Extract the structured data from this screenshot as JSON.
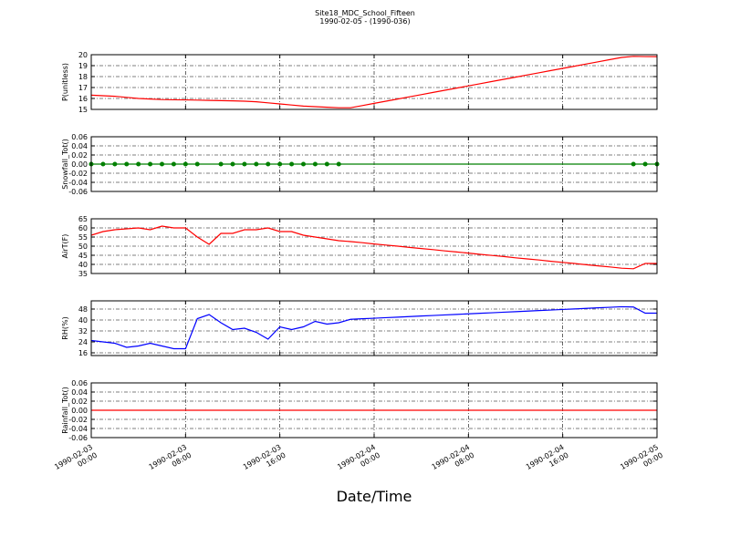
{
  "chart_data": [
    {
      "type": "line",
      "title": "Site18_MDC_School_Fifteen",
      "subtitle": "1990-02-05 - (1990-036)",
      "ylabel": "P(unitless)",
      "color": "#ff0000",
      "grid": true,
      "xlim": [
        "1990-02-03 00:00",
        "1990-02-05 00:00"
      ],
      "xticks": [
        "1990-02-03 00:00",
        "1990-02-03 08:00",
        "1990-02-03 16:00",
        "1990-02-04 00:00",
        "1990-02-04 08:00",
        "1990-02-04 16:00",
        "1990-02-05 00:00"
      ],
      "ylim": [
        15,
        20
      ],
      "yticks": [
        15,
        16,
        17,
        18,
        19,
        20
      ],
      "x": [
        "1990-02-03 00:00",
        "1990-02-03 01:00",
        "1990-02-03 02:00",
        "1990-02-03 03:00",
        "1990-02-03 04:00",
        "1990-02-03 05:00",
        "1990-02-03 06:00",
        "1990-02-03 07:00",
        "1990-02-03 08:00",
        "1990-02-03 09:00",
        "1990-02-03 10:00",
        "1990-02-03 11:00",
        "1990-02-03 12:00",
        "1990-02-03 13:00",
        "1990-02-03 14:00",
        "1990-02-03 15:00",
        "1990-02-03 16:00",
        "1990-02-03 17:00",
        "1990-02-03 18:00",
        "1990-02-03 19:00",
        "1990-02-03 20:00",
        "1990-02-03 21:00",
        "1990-02-03 22:00",
        "1990-02-03 23:00",
        "1990-02-04 00:00",
        "1990-02-04 01:00",
        "1990-02-04 02:00",
        "1990-02-04 03:00",
        "1990-02-04 04:00",
        "1990-02-04 05:00",
        "1990-02-04 06:00",
        "1990-02-04 07:00",
        "1990-02-04 08:00",
        "1990-02-04 09:00",
        "1990-02-04 10:00",
        "1990-02-04 11:00",
        "1990-02-04 12:00",
        "1990-02-04 13:00",
        "1990-02-04 14:00",
        "1990-02-04 15:00",
        "1990-02-04 16:00",
        "1990-02-04 17:00",
        "1990-02-04 18:00",
        "1990-02-04 19:00",
        "1990-02-04 20:00",
        "1990-02-04 21:00",
        "1990-02-04 22:00",
        "1990-02-04 23:00",
        "1990-02-05 00:00"
      ],
      "values": [
        16.3,
        16.25,
        16.2,
        16.1,
        16.0,
        15.95,
        15.9,
        15.88,
        15.87,
        15.85,
        15.82,
        15.8,
        15.78,
        15.75,
        15.7,
        15.6,
        15.5,
        15.4,
        15.3,
        15.25,
        15.2,
        15.15,
        15.15,
        15.35,
        15.55,
        15.75,
        15.95,
        16.15,
        16.35,
        16.55,
        16.75,
        16.95,
        17.15,
        17.35,
        17.55,
        17.75,
        17.95,
        18.15,
        18.35,
        18.55,
        18.75,
        18.95,
        19.15,
        19.35,
        19.55,
        19.75,
        19.85,
        19.83,
        19.82
      ]
    },
    {
      "type": "line",
      "ylabel": "Snowfall_Tot()",
      "color": "#008000",
      "markers": true,
      "grid": true,
      "xlim": [
        "1990-02-03 00:00",
        "1990-02-05 00:00"
      ],
      "xticks": [
        "1990-02-03 00:00",
        "1990-02-03 08:00",
        "1990-02-03 16:00",
        "1990-02-04 00:00",
        "1990-02-04 08:00",
        "1990-02-04 16:00",
        "1990-02-05 00:00"
      ],
      "ylim": [
        -0.06,
        0.06
      ],
      "yticks": [
        -0.06,
        -0.04,
        -0.02,
        {
          "value": 0,
          "label": "0.00"
        },
        0.02,
        0.04,
        0.06
      ],
      "x": [
        "1990-02-03 00:00",
        "1990-02-03 01:00",
        "1990-02-03 02:00",
        "1990-02-03 03:00",
        "1990-02-03 04:00",
        "1990-02-03 05:00",
        "1990-02-03 06:00",
        "1990-02-03 07:00",
        "1990-02-03 08:00",
        "1990-02-03 09:00",
        "1990-02-03 11:00",
        "1990-02-03 12:00",
        "1990-02-03 13:00",
        "1990-02-03 14:00",
        "1990-02-03 15:00",
        "1990-02-03 16:00",
        "1990-02-03 17:00",
        "1990-02-03 18:00",
        "1990-02-03 19:00",
        "1990-02-03 20:00",
        "1990-02-03 21:00",
        "1990-02-04 22:00",
        "1990-02-04 23:00",
        "1990-02-05 00:00"
      ],
      "values": [
        0,
        0,
        0,
        0,
        0,
        0,
        0,
        0,
        0,
        0,
        0,
        0,
        0,
        0,
        0,
        0,
        0,
        0,
        0,
        0,
        0,
        0,
        0,
        0
      ]
    },
    {
      "type": "line",
      "ylabel": "AirT(F)",
      "color": "#ff0000",
      "grid": true,
      "xlim": [
        "1990-02-03 00:00",
        "1990-02-05 00:00"
      ],
      "xticks": [
        "1990-02-03 00:00",
        "1990-02-03 08:00",
        "1990-02-03 16:00",
        "1990-02-04 00:00",
        "1990-02-04 08:00",
        "1990-02-04 16:00",
        "1990-02-05 00:00"
      ],
      "ylim": [
        35,
        65
      ],
      "yticks": [
        35,
        40,
        45,
        50,
        55,
        60,
        65
      ],
      "x": [
        "1990-02-03 00:00",
        "1990-02-03 01:00",
        "1990-02-03 02:00",
        "1990-02-03 03:00",
        "1990-02-03 04:00",
        "1990-02-03 05:00",
        "1990-02-03 06:00",
        "1990-02-03 07:00",
        "1990-02-03 08:00",
        "1990-02-03 09:00",
        "1990-02-03 10:00",
        "1990-02-03 11:00",
        "1990-02-03 12:00",
        "1990-02-03 13:00",
        "1990-02-03 14:00",
        "1990-02-03 15:00",
        "1990-02-03 16:00",
        "1990-02-03 17:00",
        "1990-02-03 18:00",
        "1990-02-03 19:00",
        "1990-02-03 20:00",
        "1990-02-03 21:00",
        "1990-02-03 22:00",
        "1990-02-03 23:00",
        "1990-02-04 00:00",
        "1990-02-04 01:00",
        "1990-02-04 02:00",
        "1990-02-04 03:00",
        "1990-02-04 04:00",
        "1990-02-04 05:00",
        "1990-02-04 06:00",
        "1990-02-04 07:00",
        "1990-02-04 08:00",
        "1990-02-04 09:00",
        "1990-02-04 10:00",
        "1990-02-04 11:00",
        "1990-02-04 12:00",
        "1990-02-04 13:00",
        "1990-02-04 14:00",
        "1990-02-04 15:00",
        "1990-02-04 16:00",
        "1990-02-04 17:00",
        "1990-02-04 18:00",
        "1990-02-04 19:00",
        "1990-02-04 20:00",
        "1990-02-04 21:00",
        "1990-02-04 22:00",
        "1990-02-04 23:00",
        "1990-02-05 00:00"
      ],
      "values": [
        56,
        58,
        59,
        59.5,
        60,
        59,
        61,
        60,
        60,
        55,
        51,
        57,
        57,
        59,
        59,
        60,
        58,
        58,
        56,
        55,
        54,
        53,
        52.5,
        51.9,
        51.2,
        50.6,
        50.0,
        49.3,
        48.7,
        48.1,
        47.4,
        46.8,
        46.2,
        45.5,
        44.9,
        44.3,
        43.6,
        43.0,
        42.4,
        41.7,
        41.1,
        40.5,
        39.8,
        39.2,
        38.6,
        37.9,
        37.6,
        40.5,
        40.5
      ]
    },
    {
      "type": "line",
      "ylabel": "RH(%)",
      "color": "#0000ff",
      "grid": true,
      "xlim": [
        "1990-02-03 00:00",
        "1990-02-05 00:00"
      ],
      "xticks": [
        "1990-02-03 00:00",
        "1990-02-03 08:00",
        "1990-02-03 16:00",
        "1990-02-04 00:00",
        "1990-02-04 08:00",
        "1990-02-04 16:00",
        "1990-02-05 00:00"
      ],
      "ylim": [
        14,
        54
      ],
      "yticks": [
        16,
        24,
        32,
        40,
        48
      ],
      "x": [
        "1990-02-03 00:00",
        "1990-02-03 01:00",
        "1990-02-03 02:00",
        "1990-02-03 03:00",
        "1990-02-03 04:00",
        "1990-02-03 05:00",
        "1990-02-03 06:00",
        "1990-02-03 07:00",
        "1990-02-03 08:00",
        "1990-02-03 09:00",
        "1990-02-03 10:00",
        "1990-02-03 11:00",
        "1990-02-03 12:00",
        "1990-02-03 13:00",
        "1990-02-03 14:00",
        "1990-02-03 15:00",
        "1990-02-03 16:00",
        "1990-02-03 17:00",
        "1990-02-03 18:00",
        "1990-02-03 19:00",
        "1990-02-03 20:00",
        "1990-02-03 21:00",
        "1990-02-03 22:00",
        "1990-02-03 23:00",
        "1990-02-04 00:00",
        "1990-02-04 01:00",
        "1990-02-04 02:00",
        "1990-02-04 03:00",
        "1990-02-04 04:00",
        "1990-02-04 05:00",
        "1990-02-04 06:00",
        "1990-02-04 07:00",
        "1990-02-04 08:00",
        "1990-02-04 09:00",
        "1990-02-04 10:00",
        "1990-02-04 11:00",
        "1990-02-04 12:00",
        "1990-02-04 13:00",
        "1990-02-04 14:00",
        "1990-02-04 15:00",
        "1990-02-04 16:00",
        "1990-02-04 17:00",
        "1990-02-04 18:00",
        "1990-02-04 19:00",
        "1990-02-04 20:00",
        "1990-02-04 21:00",
        "1990-02-04 22:00",
        "1990-02-04 23:00",
        "1990-02-05 00:00"
      ],
      "values": [
        25,
        24,
        23,
        20,
        21,
        23,
        21,
        19,
        19,
        41,
        44,
        38,
        33,
        34,
        31,
        26,
        35,
        33,
        35,
        39,
        37,
        38,
        40.5,
        40.9,
        41.3,
        41.7,
        42.1,
        42.5,
        42.9,
        43.3,
        43.7,
        44.1,
        44.5,
        44.9,
        45.3,
        45.7,
        46.1,
        46.5,
        46.9,
        47.3,
        47.7,
        48.1,
        48.5,
        48.9,
        49.3,
        49.7,
        49.5,
        45,
        45
      ]
    },
    {
      "type": "line",
      "ylabel": "Rainfall_Tot()",
      "xlabel": "Date/Time",
      "color": "#ff0000",
      "grid": true,
      "xlim": [
        "1990-02-03 00:00",
        "1990-02-05 00:00"
      ],
      "xticks": [
        "1990-02-03 00:00",
        "1990-02-03 08:00",
        "1990-02-03 16:00",
        "1990-02-04 00:00",
        "1990-02-04 08:00",
        "1990-02-04 16:00",
        "1990-02-05 00:00"
      ],
      "ylim": [
        -0.06,
        0.06
      ],
      "yticks": [
        -0.06,
        -0.04,
        -0.02,
        {
          "value": 0,
          "label": "0.00"
        },
        0.02,
        0.04,
        0.06
      ],
      "x": [
        "1990-02-03 00:00",
        "1990-02-03 04:00",
        "1990-02-03 08:00",
        "1990-02-03 12:00",
        "1990-02-03 16:00",
        "1990-02-03 20:00",
        "1990-02-04 00:00",
        "1990-02-04 04:00",
        "1990-02-04 08:00",
        "1990-02-04 12:00",
        "1990-02-04 16:00",
        "1990-02-04 20:00",
        "1990-02-05 00:00"
      ],
      "values": [
        0,
        0,
        0,
        0,
        0,
        0,
        0,
        0,
        0,
        0,
        0,
        0,
        0
      ]
    }
  ]
}
